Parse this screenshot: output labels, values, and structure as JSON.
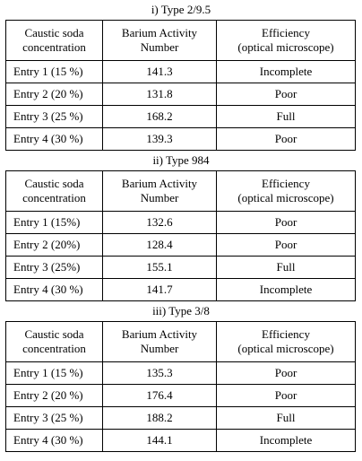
{
  "columns": {
    "concentration": [
      "Caustic soda",
      "concentration"
    ],
    "bav": [
      "Barium Activity",
      "Number"
    ],
    "efficiency": [
      "Efficiency",
      "(optical microscope)"
    ]
  },
  "tables": [
    {
      "caption": "i) Type 2/9.5",
      "rows": [
        {
          "entry": "Entry 1 (15 %)",
          "bav": "141.3",
          "efficiency": "Incomplete"
        },
        {
          "entry": "Entry 2 (20 %)",
          "bav": "131.8",
          "efficiency": "Poor"
        },
        {
          "entry": "Entry 3 (25 %)",
          "bav": "168.2",
          "efficiency": "Full"
        },
        {
          "entry": "Entry 4 (30 %)",
          "bav": "139.3",
          "efficiency": "Poor"
        }
      ]
    },
    {
      "caption": "ii) Type 984",
      "rows": [
        {
          "entry": "Entry 1 (15%)",
          "bav": "132.6",
          "efficiency": "Poor"
        },
        {
          "entry": "Entry 2 (20%)",
          "bav": "128.4",
          "efficiency": "Poor"
        },
        {
          "entry": "Entry 3 (25%)",
          "bav": "155.1",
          "efficiency": "Full"
        },
        {
          "entry": "Entry 4 (30 %)",
          "bav": "141.7",
          "efficiency": "Incomplete"
        }
      ]
    },
    {
      "caption": "iii) Type 3/8",
      "rows": [
        {
          "entry": "Entry 1 (15 %)",
          "bav": "135.3",
          "efficiency": "Poor"
        },
        {
          "entry": "Entry 2 (20 %)",
          "bav": "176.4",
          "efficiency": "Poor"
        },
        {
          "entry": "Entry 3 (25 %)",
          "bav": "188.2",
          "efficiency": "Full"
        },
        {
          "entry": "Entry 4 (30 %)",
          "bav": "144.1",
          "efficiency": "Incomplete"
        }
      ]
    }
  ]
}
